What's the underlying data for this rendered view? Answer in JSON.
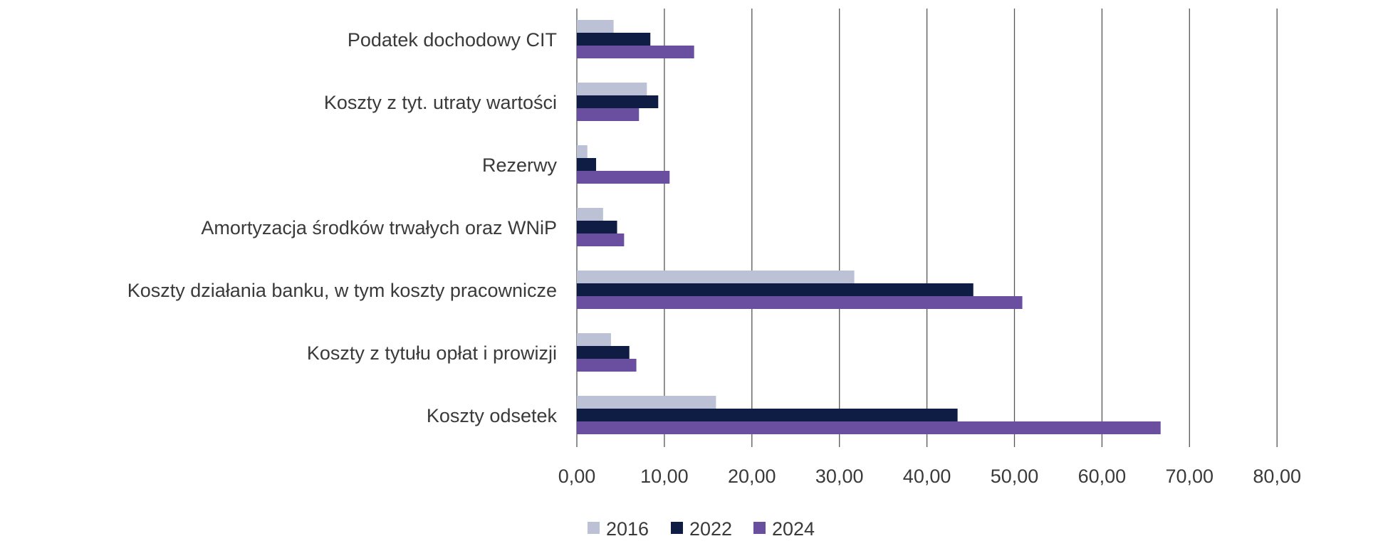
{
  "chart_data": {
    "type": "bar",
    "orientation": "horizontal",
    "categories": [
      "Podatek dochodowy CIT",
      "Koszty z tyt. utraty wartości",
      "Rezerwy",
      "Amortyzacja środków trwałych oraz WNiP",
      "Koszty działania banku, w tym koszty pracownicze",
      "Koszty z tytułu opłat i prowizji",
      "Koszty odsetek"
    ],
    "series": [
      {
        "name": "2016",
        "color": "#bcc1d6",
        "values": [
          4.2,
          8.0,
          1.2,
          3.0,
          31.7,
          3.9,
          15.9
        ]
      },
      {
        "name": "2022",
        "color": "#0f1d45",
        "values": [
          8.4,
          9.3,
          2.2,
          4.6,
          45.3,
          6.0,
          43.5
        ]
      },
      {
        "name": "2024",
        "color": "#6a4fa0",
        "values": [
          13.4,
          7.1,
          10.6,
          5.4,
          50.9,
          6.8,
          66.7
        ]
      }
    ],
    "xlim": [
      0,
      80
    ],
    "xticks": [
      "0,00",
      "10,00",
      "20,00",
      "30,00",
      "40,00",
      "50,00",
      "60,00",
      "70,00",
      "80,00"
    ],
    "grid": true,
    "legend_position": "bottom"
  }
}
